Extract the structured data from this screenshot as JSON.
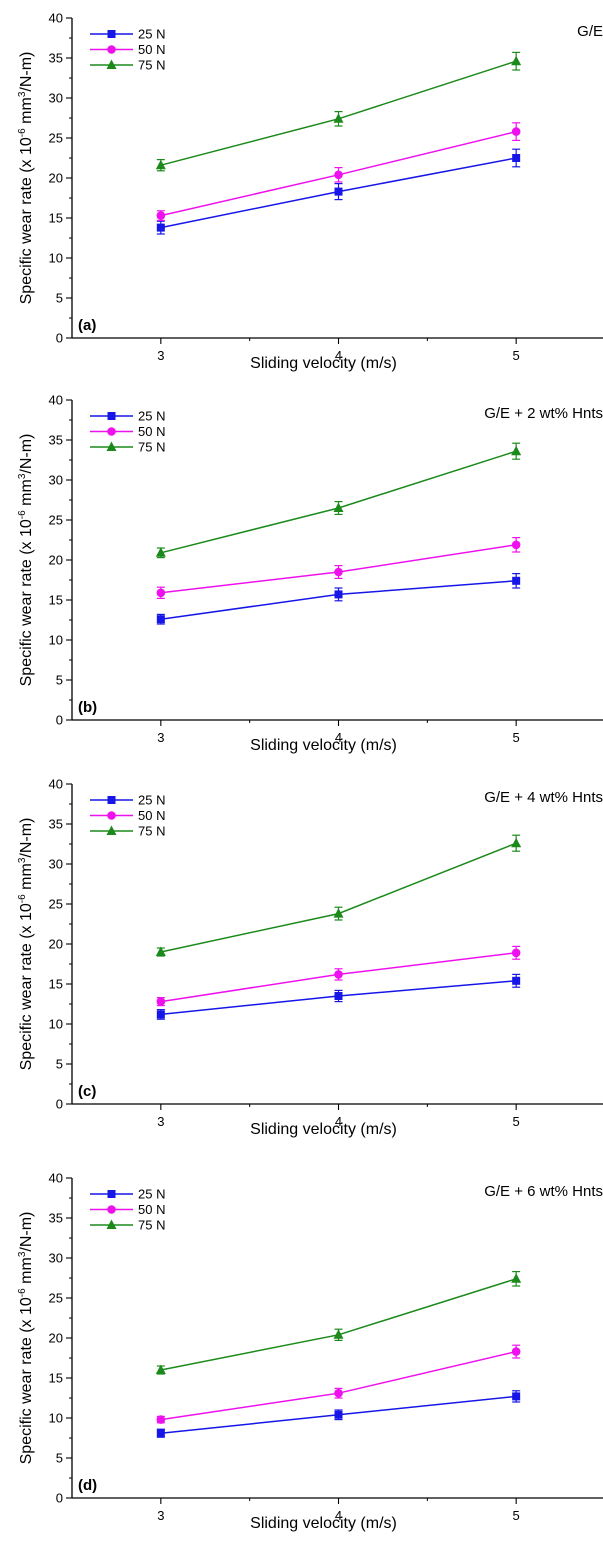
{
  "chart_data": [
    {
      "type": "line",
      "panel_label": "(a)",
      "corner_text": "G/E",
      "xlabel": "Sliding velocity (m/s)",
      "ylabel_prefix": "Specific wear rate (x 10",
      "ylabel_exponent": "-6",
      "ylabel_unit": " mm",
      "ylabel_unit_exponent": "3",
      "ylabel_suffix": "/N-m)",
      "x": [
        3,
        4,
        5
      ],
      "xticks": [
        "3",
        "4",
        "5"
      ],
      "ylim": [
        0,
        40
      ],
      "yticks": [
        "0",
        "5",
        "10",
        "15",
        "20",
        "25",
        "30",
        "35",
        "40"
      ],
      "legend_position": "top-left",
      "series": [
        {
          "name": "25 N",
          "color": "#1616e8",
          "marker": "square",
          "values": [
            13.8,
            18.3,
            22.5
          ],
          "errors": [
            0.8,
            1.0,
            1.1
          ]
        },
        {
          "name": "50 N",
          "color": "#ee11ee",
          "marker": "circle",
          "values": [
            15.3,
            20.4,
            25.8
          ],
          "errors": [
            0.6,
            0.9,
            1.1
          ]
        },
        {
          "name": "75 N",
          "color": "#1b8a1b",
          "marker": "triangle",
          "values": [
            21.6,
            27.4,
            34.6
          ],
          "errors": [
            0.7,
            0.9,
            1.1
          ]
        }
      ]
    },
    {
      "type": "line",
      "panel_label": "(b)",
      "corner_text": "G/E + 2 wt% Hnts",
      "xlabel": "Sliding velocity (m/s)",
      "ylabel_prefix": "Specific wear rate (x 10",
      "ylabel_exponent": "-6",
      "ylabel_unit": " mm",
      "ylabel_unit_exponent": "3",
      "ylabel_suffix": "/N-m)",
      "x": [
        3,
        4,
        5
      ],
      "xticks": [
        "3",
        "4",
        "5"
      ],
      "ylim": [
        0,
        40
      ],
      "yticks": [
        "0",
        "5",
        "10",
        "15",
        "20",
        "25",
        "30",
        "35",
        "40"
      ],
      "legend_position": "top-left",
      "series": [
        {
          "name": "25 N",
          "color": "#1616e8",
          "marker": "square",
          "values": [
            12.6,
            15.7,
            17.4
          ],
          "errors": [
            0.6,
            0.8,
            0.9
          ]
        },
        {
          "name": "50 N",
          "color": "#ee11ee",
          "marker": "circle",
          "values": [
            15.9,
            18.5,
            21.9
          ],
          "errors": [
            0.7,
            0.8,
            0.9
          ]
        },
        {
          "name": "75 N",
          "color": "#1b8a1b",
          "marker": "triangle",
          "values": [
            20.9,
            26.5,
            33.6
          ],
          "errors": [
            0.6,
            0.8,
            1.0
          ]
        }
      ]
    },
    {
      "type": "line",
      "panel_label": "(c)",
      "corner_text": "G/E + 4 wt% Hnts",
      "xlabel": "Sliding velocity (m/s)",
      "ylabel_prefix": "Specific wear rate (x 10",
      "ylabel_exponent": "-6",
      "ylabel_unit": " mm",
      "ylabel_unit_exponent": "3",
      "ylabel_suffix": "/N-m)",
      "x": [
        3,
        4,
        5
      ],
      "xticks": [
        "3",
        "4",
        "5"
      ],
      "ylim": [
        0,
        40
      ],
      "yticks": [
        "0",
        "5",
        "10",
        "15",
        "20",
        "25",
        "30",
        "35",
        "40"
      ],
      "legend_position": "top-left",
      "series": [
        {
          "name": "25 N",
          "color": "#1616e8",
          "marker": "square",
          "values": [
            11.2,
            13.5,
            15.4
          ],
          "errors": [
            0.6,
            0.7,
            0.8
          ]
        },
        {
          "name": "50 N",
          "color": "#ee11ee",
          "marker": "circle",
          "values": [
            12.8,
            16.2,
            18.9
          ],
          "errors": [
            0.5,
            0.7,
            0.8
          ]
        },
        {
          "name": "75 N",
          "color": "#1b8a1b",
          "marker": "triangle",
          "values": [
            19.0,
            23.8,
            32.6
          ],
          "errors": [
            0.5,
            0.8,
            1.0
          ]
        }
      ]
    },
    {
      "type": "line",
      "panel_label": "(d)",
      "corner_text": "G/E + 6 wt% Hnts",
      "xlabel": "Sliding velocity (m/s)",
      "ylabel_prefix": "Specific wear rate (x 10",
      "ylabel_exponent": "-6",
      "ylabel_unit": " mm",
      "ylabel_unit_exponent": "3",
      "ylabel_suffix": "/N-m)",
      "x": [
        3,
        4,
        5
      ],
      "xticks": [
        "3",
        "4",
        "5"
      ],
      "ylim": [
        0,
        40
      ],
      "yticks": [
        "0",
        "5",
        "10",
        "15",
        "20",
        "25",
        "30",
        "35",
        "40"
      ],
      "legend_position": "top-left",
      "series": [
        {
          "name": "25 N",
          "color": "#1616e8",
          "marker": "square",
          "values": [
            8.1,
            10.4,
            12.7
          ],
          "errors": [
            0.5,
            0.6,
            0.7
          ]
        },
        {
          "name": "50 N",
          "color": "#ee11ee",
          "marker": "circle",
          "values": [
            9.8,
            13.1,
            18.3
          ],
          "errors": [
            0.4,
            0.6,
            0.8
          ]
        },
        {
          "name": "75 N",
          "color": "#1b8a1b",
          "marker": "triangle",
          "values": [
            16.0,
            20.4,
            27.4
          ],
          "errors": [
            0.5,
            0.7,
            0.9
          ]
        }
      ]
    }
  ]
}
